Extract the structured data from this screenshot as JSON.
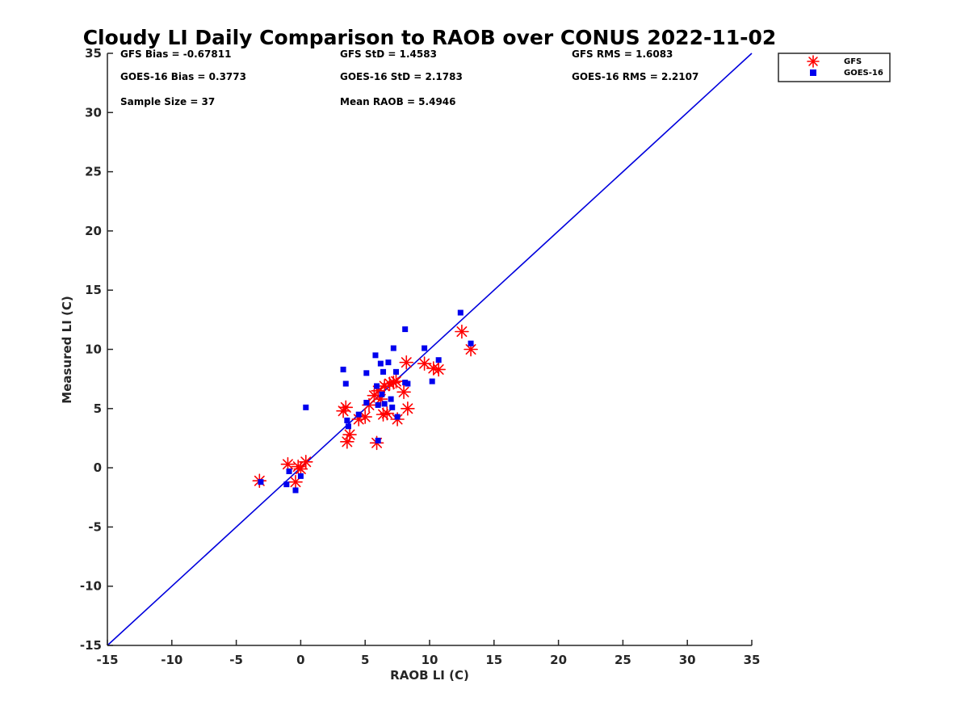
{
  "chart_data": {
    "type": "scatter",
    "title": "Cloudy LI Daily Comparison to RAOB over CONUS 2022-11-02",
    "xlabel": "RAOB LI (C)",
    "ylabel": "Measured LI (C)",
    "xlim": [
      -15,
      35
    ],
    "ylim": [
      -15,
      35
    ],
    "xticks": [
      -15,
      -10,
      -5,
      0,
      5,
      10,
      15,
      20,
      25,
      30,
      35
    ],
    "yticks": [
      -15,
      -10,
      -5,
      0,
      5,
      10,
      15,
      20,
      25,
      30,
      35
    ],
    "grid": false,
    "legend_position": "outside-top-right",
    "reference_line": {
      "from": [
        -15,
        -15
      ],
      "to": [
        35,
        35
      ],
      "color": "#0000dd"
    },
    "stats": [
      "GFS Bias = -0.67811",
      "GFS StD = 1.4583",
      "GFS RMS = 1.6083",
      "GOES-16 Bias = 0.3773",
      "GOES-16 StD = 2.1783",
      "GOES-16 RMS = 2.2107",
      "Sample Size = 37",
      "Mean RAOB = 5.4946"
    ],
    "series": [
      {
        "name": "GFS",
        "marker": "asterisk",
        "color": "#ff0000",
        "points": [
          [
            -3.2,
            -1.1
          ],
          [
            -1.0,
            0.3
          ],
          [
            -0.4,
            -1.2
          ],
          [
            -0.2,
            0.1
          ],
          [
            0.0,
            -0.1
          ],
          [
            0.4,
            0.5
          ],
          [
            3.3,
            4.8
          ],
          [
            3.5,
            5.1
          ],
          [
            3.6,
            2.2
          ],
          [
            3.8,
            2.8
          ],
          [
            4.5,
            4.1
          ],
          [
            5.0,
            4.3
          ],
          [
            5.3,
            5.3
          ],
          [
            5.7,
            6.1
          ],
          [
            5.9,
            2.1
          ],
          [
            6.0,
            6.5
          ],
          [
            6.2,
            5.8
          ],
          [
            6.4,
            4.5
          ],
          [
            6.5,
            6.9
          ],
          [
            6.7,
            4.6
          ],
          [
            6.9,
            7.1
          ],
          [
            7.2,
            7.2
          ],
          [
            7.4,
            7.3
          ],
          [
            7.5,
            4.1
          ],
          [
            8.0,
            6.4
          ],
          [
            8.2,
            8.9
          ],
          [
            8.3,
            5.0
          ],
          [
            9.6,
            8.8
          ],
          [
            10.3,
            8.4
          ],
          [
            10.7,
            8.3
          ],
          [
            12.5,
            11.5
          ],
          [
            13.2,
            10.0
          ]
        ]
      },
      {
        "name": "GOES-16",
        "marker": "square",
        "color": "#0000ee",
        "points": [
          [
            -3.1,
            -1.2
          ],
          [
            -1.1,
            -1.4
          ],
          [
            -0.9,
            -0.3
          ],
          [
            -0.4,
            -1.9
          ],
          [
            0.0,
            -0.7
          ],
          [
            0.4,
            5.1
          ],
          [
            3.3,
            8.3
          ],
          [
            3.5,
            7.1
          ],
          [
            3.6,
            4.0
          ],
          [
            3.7,
            3.5
          ],
          [
            4.5,
            4.5
          ],
          [
            5.1,
            8.0
          ],
          [
            5.1,
            5.5
          ],
          [
            5.8,
            9.5
          ],
          [
            5.9,
            6.9
          ],
          [
            6.0,
            2.3
          ],
          [
            6.0,
            5.3
          ],
          [
            6.2,
            8.8
          ],
          [
            6.3,
            6.2
          ],
          [
            6.4,
            8.1
          ],
          [
            6.5,
            5.4
          ],
          [
            6.8,
            8.9
          ],
          [
            7.0,
            5.8
          ],
          [
            7.1,
            5.1
          ],
          [
            7.2,
            10.1
          ],
          [
            7.4,
            8.1
          ],
          [
            7.5,
            4.3
          ],
          [
            8.1,
            11.7
          ],
          [
            8.1,
            7.2
          ],
          [
            8.3,
            7.1
          ],
          [
            9.6,
            10.1
          ],
          [
            10.2,
            7.3
          ],
          [
            10.7,
            9.1
          ],
          [
            12.4,
            13.1
          ],
          [
            13.2,
            10.5
          ]
        ]
      }
    ]
  }
}
